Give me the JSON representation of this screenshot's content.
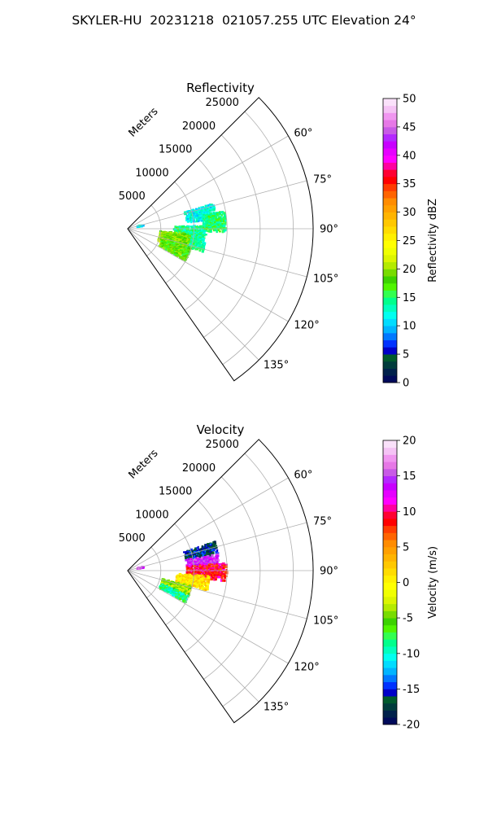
{
  "suptitle": "SKYLER-HU  20231218  021057.255 UTC Elevation 24°",
  "chart_data": [
    {
      "type": "heatmap",
      "subtype": "polar-sector",
      "title": "Reflectivity",
      "radial_label": "Meters",
      "r_ticks": [
        5000,
        10000,
        15000,
        20000,
        25000
      ],
      "r_tick_labels": [
        "5000",
        "10000",
        "15000",
        "20000",
        "25000"
      ],
      "rlim": [
        0,
        28000
      ],
      "theta_ticks": [
        60,
        75,
        90,
        105,
        120,
        135
      ],
      "theta_tick_labels": [
        "60°",
        "75°",
        "90°",
        "105°",
        "120°",
        "135°"
      ],
      "theta_range_deg": [
        45,
        145
      ],
      "grid": true,
      "colorbar": {
        "label": "Reflectivity dBZ",
        "range": [
          0,
          50
        ],
        "ticks": [
          0,
          5,
          10,
          15,
          20,
          25,
          30,
          35,
          40,
          45,
          50
        ],
        "tick_labels": [
          "0",
          "5",
          "10",
          "15",
          "20",
          "25",
          "30",
          "35",
          "40",
          "45",
          "50"
        ],
        "colors": [
          "#000a5a",
          "#00214b",
          "#003c3c",
          "#005a2d",
          "#0000c8",
          "#0032ff",
          "#0078ff",
          "#00b4ff",
          "#00dcff",
          "#00fff0",
          "#00ffbe",
          "#00ff8c",
          "#32ff50",
          "#50f500",
          "#3cd200",
          "#78dc00",
          "#b4eb00",
          "#dcf500",
          "#f0ff00",
          "#ffff00",
          "#fff000",
          "#ffdc00",
          "#ffc800",
          "#ffb400",
          "#ffa000",
          "#ff8c00",
          "#ff6400",
          "#ff3c00",
          "#ff0000",
          "#ff0032",
          "#ff00a0",
          "#ff00ff",
          "#e600ff",
          "#c800ff",
          "#b428ff",
          "#c85ae6",
          "#e678e6",
          "#f096f0",
          "#f5c3f5",
          "#fae1fa"
        ]
      },
      "echo_regions": [
        {
          "theta": [
            88,
            107
          ],
          "r": [
            7000,
            12000
          ],
          "value": 14
        },
        {
          "theta": [
            74,
            84
          ],
          "r": [
            9000,
            13500
          ],
          "value": 12
        },
        {
          "theta": [
            95,
            112
          ],
          "r": [
            5000,
            9500
          ],
          "value": 19
        },
        {
          "theta": [
            107,
            119
          ],
          "r": [
            5500,
            10000
          ],
          "value": 18
        },
        {
          "theta": [
            80,
            92
          ],
          "r": [
            11500,
            15000
          ],
          "value": 15
        },
        {
          "theta": [
            77,
            80
          ],
          "r": [
            1500,
            2500
          ],
          "value": 12
        }
      ]
    },
    {
      "type": "heatmap",
      "subtype": "polar-sector",
      "title": "Velocity",
      "radial_label": "Meters",
      "r_ticks": [
        5000,
        10000,
        15000,
        20000,
        25000
      ],
      "r_tick_labels": [
        "5000",
        "10000",
        "15000",
        "20000",
        "25000"
      ],
      "rlim": [
        0,
        28000
      ],
      "theta_ticks": [
        60,
        75,
        90,
        105,
        120,
        135
      ],
      "theta_tick_labels": [
        "60°",
        "75°",
        "90°",
        "105°",
        "120°",
        "135°"
      ],
      "theta_range_deg": [
        45,
        145
      ],
      "grid": true,
      "colorbar": {
        "label": "Velocity (m/s)",
        "range": [
          -20,
          20
        ],
        "ticks": [
          -20,
          -15,
          -10,
          -5,
          0,
          5,
          10,
          15,
          20
        ],
        "tick_labels": [
          "-20",
          "-15",
          "-10",
          "-5",
          "0",
          "5",
          "10",
          "15",
          "20"
        ],
        "colors": [
          "#000a5a",
          "#00214b",
          "#003c3c",
          "#005a2d",
          "#0000c8",
          "#0032ff",
          "#0078ff",
          "#00b4ff",
          "#00dcff",
          "#00fff0",
          "#00ffbe",
          "#00ff8c",
          "#32ff50",
          "#50f500",
          "#3cd200",
          "#78dc00",
          "#b4eb00",
          "#dcf500",
          "#f0ff00",
          "#ffff00",
          "#fff000",
          "#ffdc00",
          "#ffc800",
          "#ffb400",
          "#ffa000",
          "#ff8c00",
          "#ff6400",
          "#ff3c00",
          "#ff0000",
          "#ff0032",
          "#ff00a0",
          "#ff00ff",
          "#e600ff",
          "#c800ff",
          "#b428ff",
          "#c85ae6",
          "#e678e6",
          "#f096f0",
          "#f5c3f5",
          "#fae1fa"
        ]
      },
      "echo_regions": [
        {
          "theta": [
            72,
            80
          ],
          "r": [
            9000,
            14000
          ],
          "value": -16
        },
        {
          "theta": [
            80,
            88
          ],
          "r": [
            9000,
            14000
          ],
          "value": 14
        },
        {
          "theta": [
            86,
            96
          ],
          "r": [
            9000,
            15000
          ],
          "value": 9
        },
        {
          "theta": [
            94,
            104
          ],
          "r": [
            7500,
            12500
          ],
          "value": 1
        },
        {
          "theta": [
            104,
            112
          ],
          "r": [
            5500,
            10000
          ],
          "value": -4
        },
        {
          "theta": [
            112,
            119
          ],
          "r": [
            5500,
            10000
          ],
          "value": -9
        },
        {
          "theta": [
            77,
            80
          ],
          "r": [
            1500,
            2500
          ],
          "value": 14
        }
      ]
    }
  ]
}
